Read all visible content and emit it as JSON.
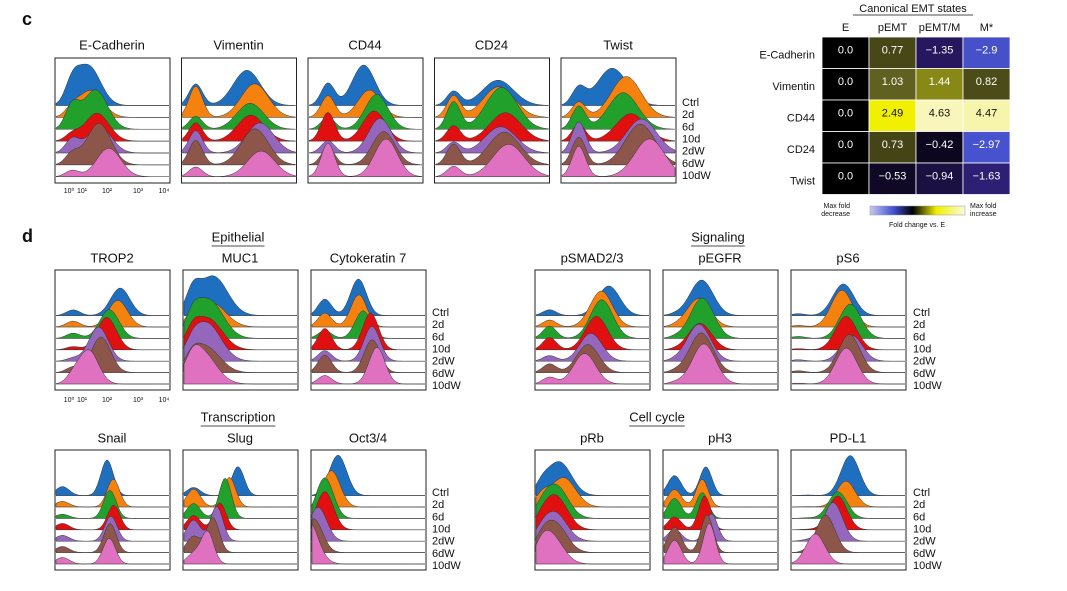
{
  "panel_c": {
    "label": "c",
    "markers": [
      "E-Cadherin",
      "Vimentin",
      "CD44",
      "CD24",
      "Twist"
    ],
    "conditions": [
      "Ctrl",
      "2d",
      "6d",
      "10d",
      "2dW",
      "6dW",
      "10dW"
    ],
    "x_ticks": [
      "10⁰",
      "10¹",
      "10²",
      "10³",
      "10⁴"
    ],
    "heatmap": {
      "title": "Canonical EMT states",
      "columns": [
        "E",
        "pEMT",
        "pEMT/M",
        "M*"
      ],
      "rows": [
        "E-Cadherin",
        "Vimentin",
        "CD44",
        "CD24",
        "Twist"
      ],
      "values": [
        [
          0.0,
          0.77,
          -1.35,
          -2.9
        ],
        [
          0.0,
          1.03,
          1.44,
          0.82
        ],
        [
          0.0,
          2.49,
          4.63,
          4.47
        ],
        [
          0.0,
          0.73,
          -0.42,
          -2.97
        ],
        [
          0.0,
          -0.53,
          -0.94,
          -1.63
        ]
      ],
      "value_labels": [
        [
          "0.0",
          "0.77",
          "−1.35",
          "−2.9"
        ],
        [
          "0.0",
          "1.03",
          "1.44",
          "0.82"
        ],
        [
          "0.0",
          "2.49",
          "4.63",
          "4.47"
        ],
        [
          "0.0",
          "0.73",
          "−0.42",
          "−2.97"
        ],
        [
          "0.0",
          "−0.53",
          "−0.94",
          "−1.63"
        ]
      ],
      "colorbar": {
        "left": [
          "Max fold",
          "decrease"
        ],
        "center": "Fold change vs. E",
        "right": [
          "Max fold",
          "increase"
        ]
      }
    }
  },
  "panel_d": {
    "label": "d",
    "x_ticks": [
      "10⁰",
      "10¹",
      "10²",
      "10³",
      "10⁴"
    ],
    "groups": [
      {
        "title": "Epithelial",
        "markers": [
          "TROP2",
          "MUC1",
          "Cytokeratin 7"
        ]
      },
      {
        "title": "Signaling",
        "markers": [
          "pSMAD2/3",
          "pEGFR",
          "pS6"
        ]
      },
      {
        "title": "Transcription",
        "markers": [
          "Snail",
          "Slug",
          "Oct3/4"
        ]
      },
      {
        "title": "Cell cycle",
        "markers": [
          "pRb",
          "pH3",
          "PD-L1"
        ]
      }
    ]
  }
}
